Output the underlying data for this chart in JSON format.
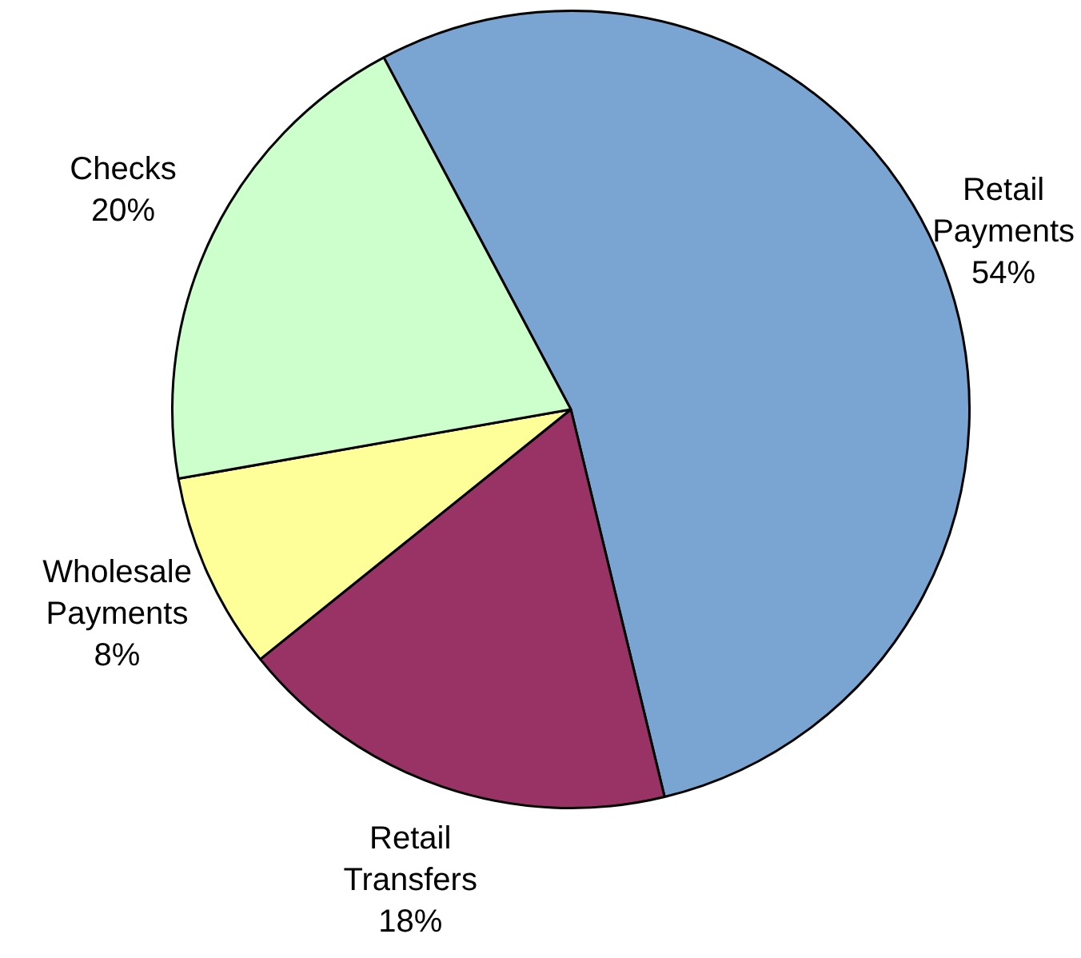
{
  "chart_data": {
    "type": "pie",
    "categories": [
      "Retail Payments",
      "Retail Transfers",
      "Wholesale Payments",
      "Checks"
    ],
    "values": [
      54,
      18,
      8,
      20
    ],
    "colors": [
      "#7aa5d2",
      "#993366",
      "#ffff99",
      "#ccffcc"
    ],
    "value_labels": [
      "54%",
      "18%",
      "8%",
      "20%"
    ],
    "legend": false
  }
}
